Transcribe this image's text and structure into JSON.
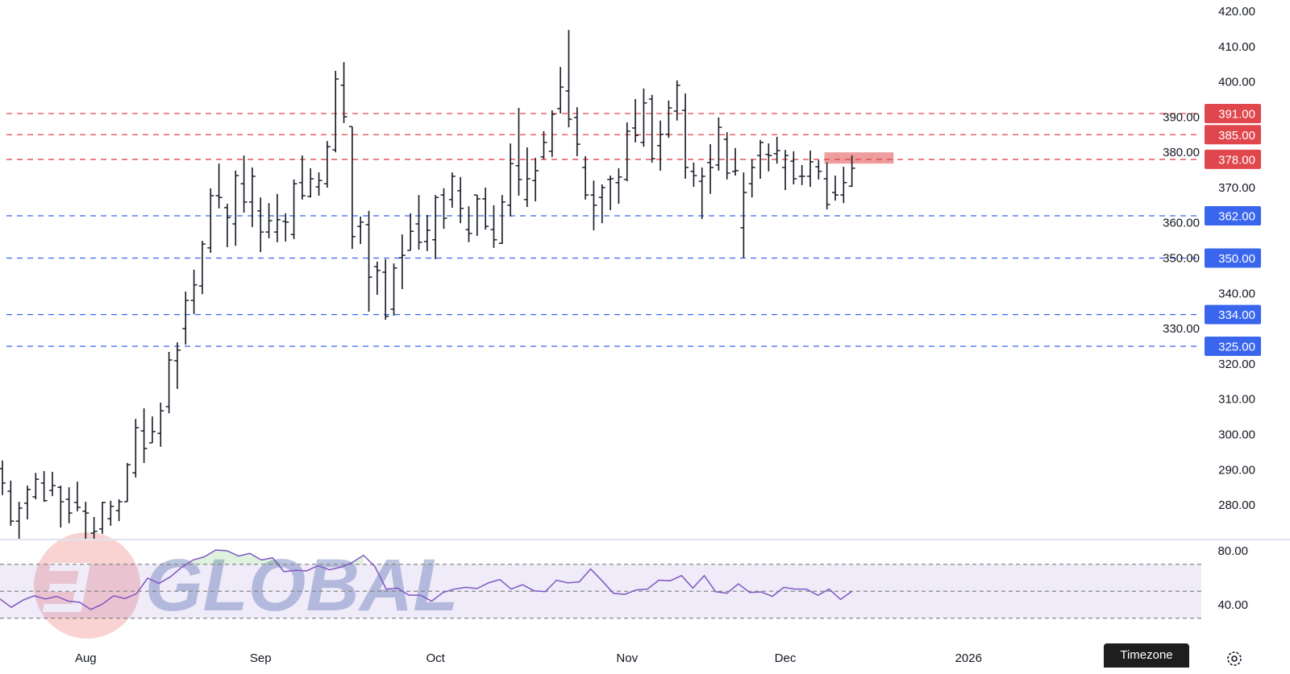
{
  "chart_data": {
    "type": "ohlc",
    "price_axis": {
      "ylim": [
        275,
        422
      ],
      "ticks": [
        "420.00",
        "410.00",
        "400.00",
        "390.00",
        "380.00",
        "370.00",
        "360.00",
        "350.00",
        "340.00",
        "330.00",
        "320.00",
        "310.00",
        "300.00",
        "290.00",
        "280.00"
      ]
    },
    "x_ticks": [
      {
        "label": "Aug",
        "bar": 10
      },
      {
        "label": "Sep",
        "bar": 31
      },
      {
        "label": "Oct",
        "bar": 52
      },
      {
        "label": "Nov",
        "bar": 75
      },
      {
        "label": "Dec",
        "bar": 94
      },
      {
        "label": "2026",
        "bar": 116
      }
    ],
    "ohlc_fields": [
      "open",
      "high",
      "low",
      "close"
    ],
    "bars": [
      [
        290.3,
        292.6,
        282.8,
        286.2
      ],
      [
        283.9,
        286.9,
        274.1,
        275.4
      ],
      [
        275.4,
        280.9,
        270.2,
        279.1
      ],
      [
        280.5,
        285.5,
        275.9,
        284.4
      ],
      [
        282.3,
        289.1,
        281.6,
        287.3
      ],
      [
        286.2,
        289.6,
        280.9,
        281.2
      ],
      [
        284.1,
        289.4,
        282.5,
        285.5
      ],
      [
        285.0,
        285.5,
        273.6,
        280.9
      ],
      [
        281.6,
        285.0,
        274.8,
        277.7
      ],
      [
        280.7,
        286.6,
        278.2,
        279.3
      ],
      [
        278.2,
        280.9,
        270.2,
        277.7
      ],
      [
        272.0,
        276.6,
        270.2,
        272.5
      ],
      [
        273.2,
        280.9,
        271.8,
        280.7
      ],
      [
        276.1,
        281.2,
        274.1,
        279.6
      ],
      [
        278.4,
        281.6,
        275.4,
        280.9
      ],
      [
        280.9,
        291.9,
        280.9,
        291.4
      ],
      [
        289.1,
        304.4,
        287.8,
        301.9
      ],
      [
        301.0,
        307.4,
        291.9,
        296.0
      ],
      [
        297.6,
        305.1,
        297.6,
        300.8
      ],
      [
        300.3,
        309.0,
        296.5,
        306.7
      ],
      [
        307.9,
        323.4,
        306.0,
        321.1
      ],
      [
        320.9,
        326.1,
        312.9,
        323.9
      ],
      [
        330.0,
        340.5,
        325.5,
        338.0
      ],
      [
        338.0,
        346.7,
        334.1,
        342.4
      ],
      [
        342.1,
        354.9,
        339.8,
        354.0
      ],
      [
        352.9,
        369.8,
        351.5,
        367.7
      ],
      [
        367.7,
        376.8,
        364.1,
        367.2
      ],
      [
        364.3,
        365.4,
        353.1,
        361.5
      ],
      [
        359.7,
        374.8,
        353.5,
        373.4
      ],
      [
        371.1,
        379.1,
        362.9,
        365.9
      ],
      [
        365.9,
        375.7,
        358.8,
        373.2
      ],
      [
        363.4,
        367.2,
        351.7,
        357.4
      ],
      [
        357.4,
        365.6,
        355.6,
        360.6
      ],
      [
        357.4,
        368.2,
        354.5,
        360.9
      ],
      [
        360.4,
        362.7,
        354.7,
        360.2
      ],
      [
        356.7,
        372.3,
        355.4,
        371.1
      ],
      [
        371.4,
        379.1,
        366.6,
        367.7
      ],
      [
        367.5,
        375.5,
        367.2,
        372.5
      ],
      [
        370.2,
        374.3,
        367.7,
        372.0
      ],
      [
        371.1,
        383.2,
        370.0,
        381.6
      ],
      [
        380.7,
        403.1,
        380.0,
        400.8
      ],
      [
        399.0,
        405.6,
        388.3,
        390.1
      ],
      [
        387.3,
        387.3,
        352.6,
        356.1
      ],
      [
        359.0,
        361.8,
        354.0,
        360.2
      ],
      [
        359.5,
        363.4,
        334.8,
        344.6
      ],
      [
        347.6,
        349.0,
        339.6,
        346.5
      ],
      [
        346.0,
        349.7,
        332.5,
        333.5
      ],
      [
        335.5,
        348.5,
        333.7,
        347.2
      ],
      [
        350.1,
        356.7,
        341.2,
        350.8
      ],
      [
        352.2,
        362.7,
        352.2,
        357.6
      ],
      [
        359.7,
        367.9,
        352.4,
        354.5
      ],
      [
        354.7,
        362.2,
        352.0,
        357.9
      ],
      [
        355.2,
        367.9,
        349.7,
        367.2
      ],
      [
        367.9,
        369.8,
        358.3,
        361.3
      ],
      [
        366.6,
        374.3,
        364.3,
        373.2
      ],
      [
        369.1,
        373.0,
        359.9,
        364.1
      ],
      [
        358.1,
        364.7,
        354.5,
        357.0
      ],
      [
        367.9,
        367.9,
        356.3,
        366.8
      ],
      [
        366.8,
        370.0,
        358.1,
        359.0
      ],
      [
        358.1,
        365.0,
        352.9,
        355.2
      ],
      [
        354.2,
        367.9,
        354.0,
        365.9
      ],
      [
        365.0,
        382.5,
        361.8,
        376.8
      ],
      [
        376.2,
        392.6,
        367.7,
        372.3
      ],
      [
        366.6,
        381.4,
        364.5,
        372.5
      ],
      [
        372.0,
        378.4,
        366.1,
        374.8
      ],
      [
        378.7,
        386.0,
        378.0,
        382.8
      ],
      [
        380.3,
        391.9,
        378.7,
        390.8
      ],
      [
        392.4,
        404.2,
        391.0,
        398.5
      ],
      [
        397.4,
        414.7,
        387.1,
        389.4
      ],
      [
        389.9,
        392.8,
        378.9,
        382.3
      ],
      [
        375.7,
        378.9,
        366.6,
        367.9
      ],
      [
        367.9,
        372.0,
        357.9,
        365.0
      ],
      [
        367.2,
        370.9,
        359.9,
        370.0
      ],
      [
        372.3,
        373.4,
        363.6,
        372.5
      ],
      [
        371.4,
        375.5,
        365.4,
        373.0
      ],
      [
        372.3,
        388.5,
        371.8,
        386.0
      ],
      [
        386.9,
        395.1,
        382.8,
        384.8
      ],
      [
        382.8,
        398.1,
        381.6,
        394.0
      ],
      [
        395.1,
        396.3,
        377.1,
        378.2
      ],
      [
        381.9,
        389.0,
        374.8,
        385.1
      ],
      [
        385.1,
        394.7,
        384.1,
        392.6
      ],
      [
        391.7,
        400.4,
        389.0,
        399.0
      ],
      [
        391.9,
        396.7,
        372.5,
        375.7
      ],
      [
        374.6,
        377.1,
        370.2,
        373.4
      ],
      [
        371.8,
        375.7,
        361.1,
        373.2
      ],
      [
        377.1,
        382.3,
        368.2,
        375.7
      ],
      [
        376.4,
        389.9,
        374.8,
        387.1
      ],
      [
        383.7,
        385.7,
        372.3,
        374.1
      ],
      [
        374.6,
        381.2,
        373.4,
        374.8
      ],
      [
        358.6,
        374.3,
        350.1,
        368.6
      ],
      [
        371.1,
        378.0,
        367.2,
        375.7
      ],
      [
        379.1,
        383.5,
        372.5,
        382.8
      ],
      [
        379.4,
        382.5,
        374.6,
        379.1
      ],
      [
        379.6,
        384.4,
        376.8,
        380.5
      ],
      [
        375.7,
        380.7,
        369.3,
        379.1
      ],
      [
        377.5,
        380.3,
        370.9,
        372.5
      ],
      [
        373.2,
        376.4,
        370.7,
        373.2
      ],
      [
        373.2,
        380.5,
        370.2,
        377.3
      ],
      [
        375.9,
        377.8,
        372.3,
        374.6
      ],
      [
        372.5,
        377.1,
        363.8,
        365.2
      ],
      [
        368.6,
        373.4,
        366.3,
        367.9
      ],
      [
        367.9,
        375.9,
        365.6,
        371.4
      ],
      [
        370.4,
        379.1,
        370.2,
        375.5
      ]
    ],
    "levels": [
      {
        "price": 391,
        "label": "391.00",
        "color": "#e0474c"
      },
      {
        "price": 385,
        "label": "385.00",
        "color": "#e0474c"
      },
      {
        "price": 378,
        "label": "378.00",
        "color": "#e0474c"
      },
      {
        "price": 362,
        "label": "362.00",
        "color": "#3a66ee"
      },
      {
        "price": 350,
        "label": "350.00",
        "color": "#3a66ee"
      },
      {
        "price": 334,
        "label": "334.00",
        "color": "#3a66ee"
      },
      {
        "price": 325,
        "label": "325.00",
        "color": "#3a66ee"
      }
    ],
    "zone": {
      "from_price": 376.8,
      "to_price": 380.0,
      "from_bar": 98.7,
      "to_bar": 107,
      "color": "#e57373"
    },
    "rsi": {
      "ticks": [
        "80.00",
        "40.00"
      ],
      "bands": [
        70,
        50,
        30
      ],
      "line_color": "#7e57c2",
      "values": [
        44.3,
        38.1,
        43.3,
        46.6,
        44.3,
        46.2,
        42.7,
        41.9,
        36.5,
        40.4,
        46.6,
        44.6,
        48.1,
        59.7,
        55.8,
        60.7,
        67.8,
        73.2,
        75.6,
        80.6,
        80.0,
        76.1,
        78.1,
        73.2,
        74.8,
        64.5,
        65.5,
        65.1,
        69.0,
        65.9,
        67.8,
        71.3,
        76.7,
        68.4,
        51.6,
        52.4,
        47.1,
        47.1,
        42.7,
        49.1,
        51.6,
        52.9,
        52.0,
        56.2,
        58.7,
        51.6,
        54.9,
        50.4,
        49.7,
        58.2,
        56.2,
        57.0,
        66.5,
        57.8,
        48.5,
        47.7,
        51.0,
        51.6,
        58.2,
        57.8,
        61.6,
        52.4,
        61.6,
        49.7,
        48.5,
        55.5,
        49.1,
        49.5,
        46.2,
        52.9,
        51.6,
        51.6,
        47.0,
        51.6,
        43.9,
        50.0
      ]
    }
  },
  "watermark": {
    "text": "GLOBAL",
    "logo_color": "#f08080"
  },
  "footer": {
    "timezone_label": "Timezone",
    "settings_icon": "gear-icon"
  }
}
